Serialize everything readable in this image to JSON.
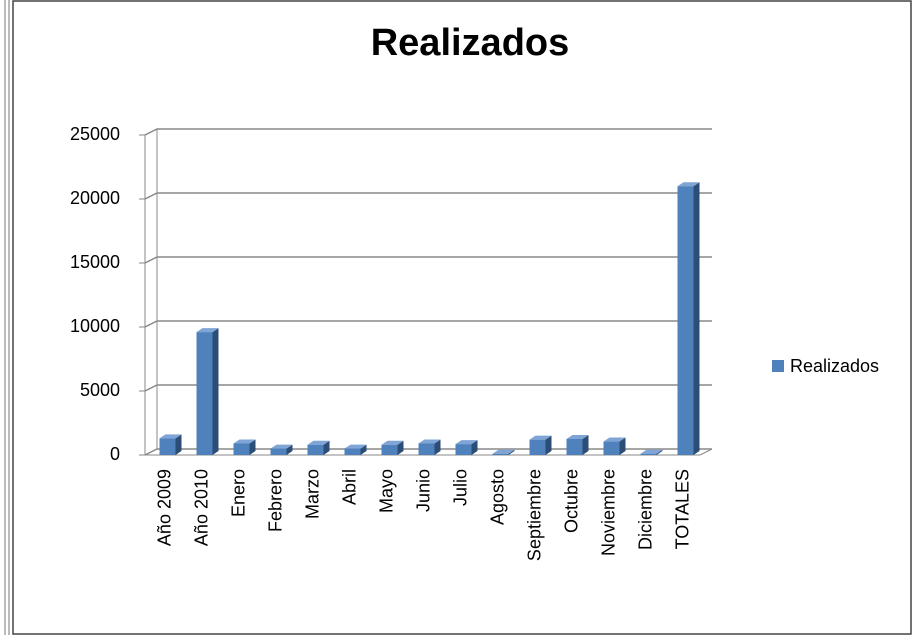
{
  "chart_data": {
    "type": "bar",
    "title": "Realizados",
    "categories": [
      "Año 2009",
      "Año 2010",
      "Enero",
      "Febrero",
      "Marzo",
      "Abril",
      "Mayo",
      "Junio",
      "Julio",
      "Agosto",
      "Septiembre",
      "Octubre",
      "Noviembre",
      "Diciembre",
      "TOTALES"
    ],
    "series": [
      {
        "name": "Realizados",
        "color": "#4f81bd",
        "values": [
          1300,
          9600,
          900,
          500,
          800,
          500,
          800,
          900,
          850,
          100,
          1200,
          1250,
          1050,
          100,
          21000
        ]
      }
    ],
    "ylim": [
      0,
      25000
    ],
    "yticks": [
      0,
      5000,
      10000,
      15000,
      20000,
      25000
    ],
    "grid": true,
    "legend": "right"
  }
}
